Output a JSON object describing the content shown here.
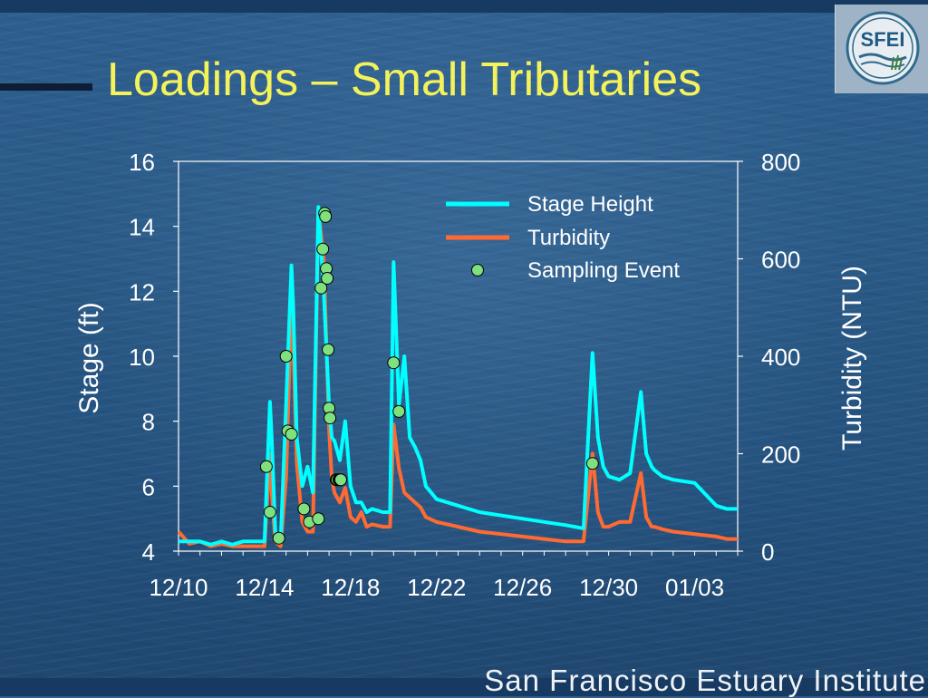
{
  "title": "Loadings – Small Tributaries",
  "footer": "San Francisco Estuary Institute",
  "logo": {
    "icon": "sfei-logo-icon",
    "text": "SFEI"
  },
  "colors": {
    "stage": "#00ffff",
    "turbidity": "#ff6a33",
    "sampling_fill": "#7fe07f",
    "title": "#f4f25a"
  },
  "chart_data": {
    "type": "line",
    "title": "",
    "xlabel": "",
    "ylabel": "Stage (ft)",
    "y2label": "Turbidity (NTU)",
    "xlim": [
      "2004-12-10",
      "2005-01-05"
    ],
    "ylim": [
      4,
      16
    ],
    "y2lim": [
      0,
      800
    ],
    "grid": false,
    "legend": "top-right",
    "x_tick_labels": [
      "12/10",
      "12/14",
      "12/18",
      "12/22",
      "12/26",
      "12/30",
      "01/03"
    ],
    "y_tick_labels": [
      "4",
      "6",
      "8",
      "10",
      "12",
      "14",
      "16"
    ],
    "y2_tick_labels": [
      "0",
      "200",
      "400",
      "600",
      "800"
    ],
    "series": [
      {
        "name": "Stage Height",
        "axis": "left",
        "x": [
          "2004-12-10 00:00",
          "2004-12-10 12:00",
          "2004-12-11 00:00",
          "2004-12-11 12:00",
          "2004-12-12 00:00",
          "2004-12-12 12:00",
          "2004-12-13 00:00",
          "2004-12-13 12:00",
          "2004-12-14 00:00",
          "2004-12-14 06:00",
          "2004-12-14 08:00",
          "2004-12-14 12:00",
          "2004-12-14 18:00",
          "2004-12-15 00:00",
          "2004-12-15 06:00",
          "2004-12-15 08:00",
          "2004-12-15 12:00",
          "2004-12-15 18:00",
          "2004-12-16 00:00",
          "2004-12-16 06:00",
          "2004-12-16 12:00",
          "2004-12-16 18:00",
          "2004-12-17 00:00",
          "2004-12-17 03:00",
          "2004-12-17 06:00",
          "2004-12-17 12:00",
          "2004-12-17 18:00",
          "2004-12-18 00:00",
          "2004-12-18 06:00",
          "2004-12-18 12:00",
          "2004-12-18 18:00",
          "2004-12-19 00:00",
          "2004-12-19 12:00",
          "2004-12-19 20:00",
          "2004-12-20 00:00",
          "2004-12-20 06:00",
          "2004-12-20 12:00",
          "2004-12-20 18:00",
          "2004-12-21 00:00",
          "2004-12-21 06:00",
          "2004-12-21 12:00",
          "2004-12-22 00:00",
          "2004-12-23 00:00",
          "2004-12-24 00:00",
          "2004-12-25 00:00",
          "2004-12-26 00:00",
          "2004-12-27 00:00",
          "2004-12-28 00:00",
          "2004-12-28 20:00",
          "2004-12-29 06:00",
          "2004-12-29 12:00",
          "2004-12-29 18:00",
          "2004-12-30 00:00",
          "2004-12-30 12:00",
          "2004-12-31 00:00",
          "2004-12-31 12:00",
          "2004-12-31 18:00",
          "2005-01-01 00:00",
          "2005-01-01 03:00",
          "2005-01-01 12:00",
          "2005-01-02 00:00",
          "2005-01-03 00:00",
          "2005-01-04 00:00",
          "2005-01-04 12:00",
          "2005-01-05 00:00"
        ],
        "values": [
          4.3,
          4.3,
          4.3,
          4.2,
          4.3,
          4.2,
          4.3,
          4.3,
          4.3,
          8.6,
          7.5,
          4.6,
          4.3,
          8.5,
          12.8,
          11.5,
          7.5,
          6.0,
          6.6,
          5.8,
          14.6,
          12.0,
          8.5,
          7.5,
          7.4,
          6.8,
          8.0,
          6.0,
          5.5,
          5.5,
          5.2,
          5.3,
          5.2,
          5.2,
          12.9,
          8.5,
          10.0,
          7.5,
          7.2,
          6.8,
          6.0,
          5.6,
          5.4,
          5.2,
          5.1,
          5.0,
          4.9,
          4.8,
          4.7,
          10.1,
          7.5,
          6.6,
          6.3,
          6.2,
          6.4,
          8.9,
          7.0,
          6.6,
          6.5,
          6.3,
          6.2,
          6.1,
          5.4,
          5.3,
          5.3
        ]
      },
      {
        "name": "Turbidity",
        "axis": "right",
        "x": [
          "2004-12-10 00:00",
          "2004-12-10 12:00",
          "2004-12-11 00:00",
          "2004-12-11 12:00",
          "2004-12-12 00:00",
          "2004-12-12 12:00",
          "2004-12-13 00:00",
          "2004-12-13 12:00",
          "2004-12-14 00:00",
          "2004-12-14 06:00",
          "2004-12-14 08:00",
          "2004-12-14 12:00",
          "2004-12-14 18:00",
          "2004-12-15 00:00",
          "2004-12-15 06:00",
          "2004-12-15 08:00",
          "2004-12-15 12:00",
          "2004-12-15 18:00",
          "2004-12-16 00:00",
          "2004-12-16 06:00",
          "2004-12-16 12:00",
          "2004-12-16 18:00",
          "2004-12-17 00:00",
          "2004-12-17 03:00",
          "2004-12-17 06:00",
          "2004-12-17 12:00",
          "2004-12-17 18:00",
          "2004-12-18 00:00",
          "2004-12-18 06:00",
          "2004-12-18 12:00",
          "2004-12-18 18:00",
          "2004-12-19 00:00",
          "2004-12-19 12:00",
          "2004-12-19 20:00",
          "2004-12-20 00:00",
          "2004-12-20 06:00",
          "2004-12-20 12:00",
          "2004-12-20 18:00",
          "2004-12-21 00:00",
          "2004-12-21 06:00",
          "2004-12-21 12:00",
          "2004-12-22 00:00",
          "2004-12-23 00:00",
          "2004-12-24 00:00",
          "2004-12-25 00:00",
          "2004-12-26 00:00",
          "2004-12-27 00:00",
          "2004-12-28 00:00",
          "2004-12-28 20:00",
          "2004-12-29 06:00",
          "2004-12-29 12:00",
          "2004-12-29 18:00",
          "2004-12-30 00:00",
          "2004-12-30 12:00",
          "2004-12-31 00:00",
          "2004-12-31 12:00",
          "2004-12-31 18:00",
          "2005-01-01 00:00",
          "2005-01-01 03:00",
          "2005-01-01 12:00",
          "2005-01-02 00:00",
          "2005-01-03 00:00",
          "2005-01-04 00:00",
          "2005-01-04 12:00",
          "2005-01-05 00:00"
        ],
        "values": [
          40,
          15,
          20,
          10,
          15,
          10,
          10,
          10,
          10,
          200,
          120,
          20,
          10,
          150,
          520,
          420,
          180,
          60,
          40,
          40,
          700,
          600,
          250,
          150,
          120,
          100,
          130,
          70,
          60,
          80,
          50,
          55,
          50,
          50,
          260,
          170,
          120,
          110,
          100,
          90,
          70,
          60,
          50,
          40,
          35,
          30,
          25,
          20,
          20,
          200,
          80,
          50,
          50,
          60,
          60,
          160,
          70,
          50,
          50,
          45,
          40,
          35,
          30,
          25,
          25
        ]
      },
      {
        "name": "Sampling Event",
        "axis": "left",
        "marker": "circle",
        "x": [
          "2004-12-14 02:00",
          "2004-12-14 06:00",
          "2004-12-14 16:00",
          "2004-12-15 00:00",
          "2004-12-15 02:00",
          "2004-12-15 06:00",
          "2004-12-15 20:00",
          "2004-12-16 02:00",
          "2004-12-16 12:00",
          "2004-12-16 15:00",
          "2004-12-16 17:00",
          "2004-12-16 19:00",
          "2004-12-16 20:00",
          "2004-12-16 21:00",
          "2004-12-16 22:00",
          "2004-12-16 23:00",
          "2004-12-17 00:00",
          "2004-12-17 01:00",
          "2004-12-17 08:00",
          "2004-12-17 09:00",
          "2004-12-17 11:00",
          "2004-12-17 12:00",
          "2004-12-17 13:00",
          "2004-12-20 00:00",
          "2004-12-20 06:00",
          "2004-12-29 06:00"
        ],
        "values": [
          6.6,
          5.2,
          4.4,
          10.0,
          7.7,
          7.6,
          5.3,
          4.9,
          5.0,
          12.1,
          13.3,
          14.4,
          14.3,
          12.7,
          12.4,
          10.2,
          8.4,
          8.1,
          6.2,
          6.2,
          6.2,
          6.2,
          6.2,
          9.8,
          8.3,
          6.7
        ]
      }
    ]
  }
}
